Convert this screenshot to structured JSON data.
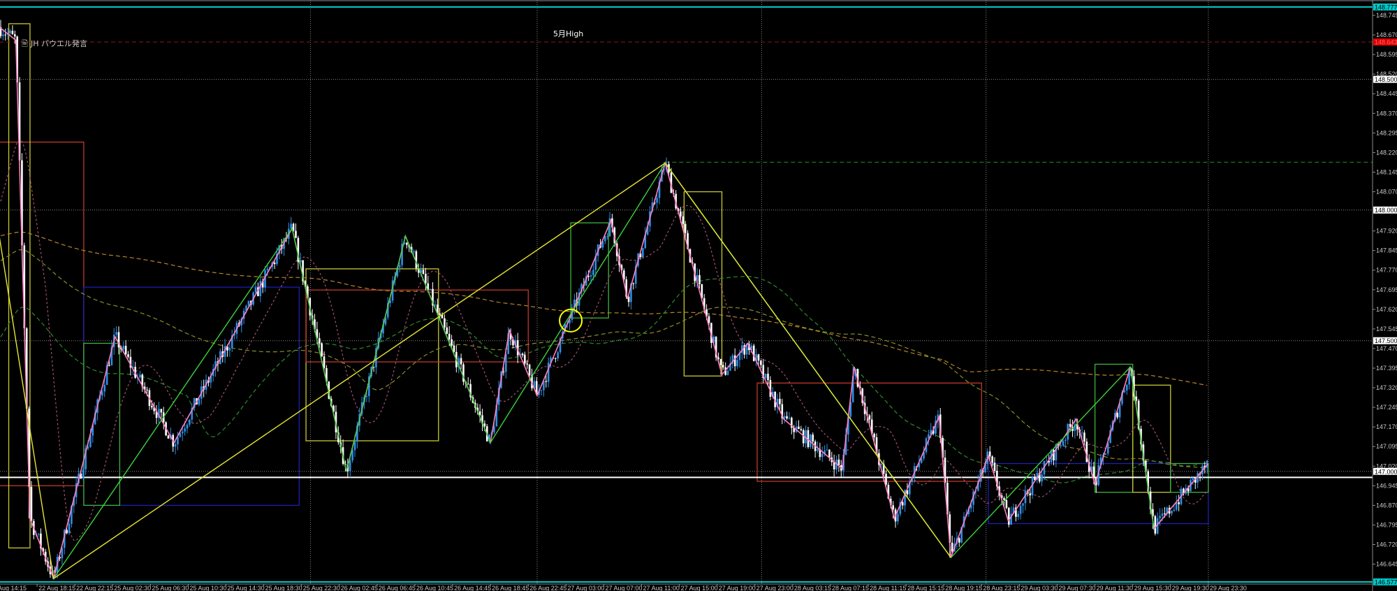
{
  "annotations": {
    "powell": {
      "text": "JH パウエル発言",
      "icon": "document-icon",
      "color": "#c8c8c8"
    },
    "may_high": {
      "text": "5月High",
      "color": "#ffffff"
    }
  },
  "chart_data": {
    "type": "candlestick",
    "title": "",
    "price_axis": {
      "range": [
        146.577,
        148.777
      ],
      "ticks": [
        "148.745",
        "148.670",
        "148.595",
        "148.520",
        "148.445",
        "148.370",
        "148.295",
        "148.220",
        "148.145",
        "148.070",
        "147.920",
        "147.845",
        "147.770",
        "147.695",
        "147.620",
        "147.545",
        "147.470",
        "147.395",
        "147.320",
        "147.245",
        "147.170",
        "147.095",
        "147.020",
        "146.945",
        "146.870",
        "146.795",
        "146.720",
        "146.645"
      ],
      "highlighted_labels": [
        {
          "value": "148.777",
          "bg": "#00c8c8",
          "fg": "#000000"
        },
        {
          "value": "148.643",
          "bg": "#e00000",
          "fg": "#ff6060"
        },
        {
          "value": "148.500",
          "bg": "#ffffff",
          "fg": "#000000"
        },
        {
          "value": "148.000",
          "bg": "#ffffff",
          "fg": "#000000"
        },
        {
          "value": "147.500",
          "bg": "#ffffff",
          "fg": "#000000"
        },
        {
          "value": "147.000",
          "bg": "#ffffff",
          "fg": "#000000"
        },
        {
          "value": "146.577",
          "bg": "#00c8c8",
          "fg": "#000000"
        }
      ]
    },
    "time_axis": {
      "ticks": [
        "22 Aug 14:15",
        "22 Aug 18:15",
        "22 Aug 22:15",
        "25 Aug 02:30",
        "25 Aug 06:30",
        "25 Aug 10:30",
        "25 Aug 14:30",
        "25 Aug 18:30",
        "25 Aug 22:30",
        "26 Aug 02:45",
        "26 Aug 06:45",
        "26 Aug 10:45",
        "26 Aug 14:45",
        "26 Aug 18:45",
        "26 Aug 22:45",
        "27 Aug 03:00",
        "27 Aug 07:00",
        "27 Aug 11:00",
        "27 Aug 15:00",
        "27 Aug 19:00",
        "27 Aug 23:00",
        "28 Aug 03:15",
        "28 Aug 07:15",
        "28 Aug 11:15",
        "28 Aug 15:15",
        "28 Aug 19:15",
        "28 Aug 23:15",
        "29 Aug 03:30",
        "29 Aug 07:30",
        "29 Aug 11:30",
        "29 Aug 15:30",
        "29 Aug 19:30",
        "29 Aug 23:30"
      ]
    },
    "day_separators": [
      "25 Aug 23:30",
      "26 Aug 23:45",
      "27 Aug 23:45",
      "28 Aug 23:45",
      "29 Aug 23:30"
    ],
    "grid_levels": [
      148.5,
      148.0,
      147.5,
      147.0
    ],
    "current_price": 146.977,
    "colors": {
      "up": "#2f8fe6",
      "down": "#ffffff",
      "zigzag": "#ff7fbf",
      "zigzag_major": "#3cd23c",
      "trend": "#e6e632",
      "grid": "#8a8a8a",
      "frame": "#00c8c8"
    },
    "price_path": [
      {
        "time": "22 Aug 14:15",
        "price": 148.7
      },
      {
        "time": "22 Aug 16:00",
        "price": 148.65
      },
      {
        "time": "22 Aug 17:30",
        "price": 146.82
      },
      {
        "time": "22 Aug 20:00",
        "price": 146.59
      },
      {
        "time": "25 Aug 02:45",
        "price": 147.515
      },
      {
        "time": "25 Aug 09:00",
        "price": 147.11
      },
      {
        "time": "25 Aug 21:30",
        "price": 147.93
      },
      {
        "time": "26 Aug 03:30",
        "price": 147.0
      },
      {
        "time": "26 Aug 09:45",
        "price": 147.9
      },
      {
        "time": "26 Aug 18:45",
        "price": 147.11
      },
      {
        "time": "26 Aug 20:45",
        "price": 147.54
      },
      {
        "time": "26 Aug 23:45",
        "price": 147.29
      },
      {
        "time": "27 Aug 07:45",
        "price": 147.96
      },
      {
        "time": "27 Aug 09:30",
        "price": 147.66
      },
      {
        "time": "27 Aug 13:30",
        "price": 148.18
      },
      {
        "time": "27 Aug 19:30",
        "price": 147.37
      },
      {
        "time": "27 Aug 22:15",
        "price": 147.49
      },
      {
        "time": "28 Aug 02:15",
        "price": 147.2
      },
      {
        "time": "28 Aug 08:30",
        "price": 147.01
      },
      {
        "time": "28 Aug 09:45",
        "price": 147.4
      },
      {
        "time": "28 Aug 14:00",
        "price": 146.82
      },
      {
        "time": "28 Aug 18:45",
        "price": 147.21
      },
      {
        "time": "28 Aug 20:00",
        "price": 146.67
      },
      {
        "time": "29 Aug 00:00",
        "price": 147.06
      },
      {
        "time": "29 Aug 02:15",
        "price": 146.81
      },
      {
        "time": "29 Aug 09:30",
        "price": 147.2
      },
      {
        "time": "29 Aug 11:30",
        "price": 146.95
      },
      {
        "time": "29 Aug 15:15",
        "price": 147.4
      },
      {
        "time": "29 Aug 17:45",
        "price": 146.78
      },
      {
        "time": "29 Aug 23:30",
        "price": 147.03
      }
    ],
    "major_zigzag": [
      {
        "time": "22 Aug 20:00",
        "price": 146.59
      },
      {
        "time": "25 Aug 21:30",
        "price": 147.93
      },
      {
        "time": "26 Aug 03:30",
        "price": 147.0
      },
      {
        "time": "26 Aug 09:45",
        "price": 147.9
      },
      {
        "time": "26 Aug 18:45",
        "price": 147.11
      },
      {
        "time": "27 Aug 13:30",
        "price": 148.18
      },
      {
        "time": "28 Aug 20:00",
        "price": 146.67
      },
      {
        "time": "29 Aug 15:15",
        "price": 147.4
      },
      {
        "time": "29 Aug 17:45",
        "price": 146.78
      }
    ],
    "trend_lines": [
      {
        "from": {
          "time": "22 Aug 14:15",
          "price": 147.9
        },
        "to": {
          "time": "22 Aug 20:00",
          "price": 146.59
        }
      },
      {
        "from": {
          "time": "22 Aug 20:00",
          "price": 146.59
        },
        "to": {
          "time": "27 Aug 13:30",
          "price": 148.18
        }
      },
      {
        "from": {
          "time": "27 Aug 13:30",
          "price": 148.18
        },
        "to": {
          "time": "28 Aug 20:00",
          "price": 146.67
        }
      }
    ],
    "levels": [
      {
        "price": 148.777,
        "color": "#00c8c8",
        "style": "solid",
        "from": "22 Aug 14:15"
      },
      {
        "price": 148.643,
        "color": "#8b1a1a",
        "style": "dashed",
        "from": "22 Aug 14:15"
      },
      {
        "price": 148.183,
        "color": "#2e8b2e",
        "style": "dashed",
        "from": "27 Aug 13:30"
      },
      {
        "price": 146.977,
        "color": "#ffffff",
        "style": "solid",
        "from": "22 Aug 14:15"
      },
      {
        "price": 146.577,
        "color": "#00c8c8",
        "style": "solid",
        "from": "22 Aug 14:15"
      }
    ],
    "boxes": [
      {
        "from": "22 Aug 14:15",
        "to": "22 Aug 23:15",
        "high": 148.26,
        "low": 146.945,
        "color": "#c0392b"
      },
      {
        "from": "22 Aug 15:15",
        "to": "22 Aug 17:30",
        "high": 148.713,
        "low": 146.707,
        "color": "#c8c832"
      },
      {
        "from": "22 Aug 23:15",
        "to": "25 Aug 22:15",
        "high": 147.705,
        "low": 146.87,
        "color": "#1e1eb4"
      },
      {
        "from": "22 Aug 23:15",
        "to": "25 Aug 03:15",
        "high": 147.49,
        "low": 146.87,
        "color": "#3cb43c"
      },
      {
        "from": "25 Aug 23:00",
        "to": "26 Aug 13:15",
        "high": 147.775,
        "low": 147.117,
        "color": "#c8c832"
      },
      {
        "from": "25 Aug 23:00",
        "to": "26 Aug 22:45",
        "high": 147.694,
        "low": 147.419,
        "color": "#c0392b"
      },
      {
        "from": "27 Aug 03:30",
        "to": "27 Aug 07:30",
        "high": 147.951,
        "low": 147.587,
        "color": "#3cb43c"
      },
      {
        "from": "27 Aug 15:30",
        "to": "27 Aug 19:30",
        "high": 148.07,
        "low": 147.365,
        "color": "#c8c832"
      },
      {
        "from": "27 Aug 23:15",
        "to": "28 Aug 23:15",
        "high": 147.338,
        "low": 146.962,
        "color": "#c0392b"
      },
      {
        "from": "29 Aug 00:00",
        "to": "29 Aug 23:30",
        "high": 147.03,
        "low": 146.8,
        "color": "#1e1eb4"
      },
      {
        "from": "29 Aug 11:30",
        "to": "29 Aug 15:30",
        "high": 147.41,
        "low": 146.92,
        "color": "#3cb43c"
      },
      {
        "from": "29 Aug 15:30",
        "to": "29 Aug 19:30",
        "high": 147.33,
        "low": 146.92,
        "color": "#c8c832"
      },
      {
        "from": "29 Aug 19:30",
        "to": "29 Aug 23:30",
        "high": 147.03,
        "low": 146.92,
        "color": "#3cb43c"
      }
    ],
    "marker_circle": {
      "time": "27 Aug 03:30",
      "price": 147.577,
      "color": "#ffff00"
    }
  }
}
